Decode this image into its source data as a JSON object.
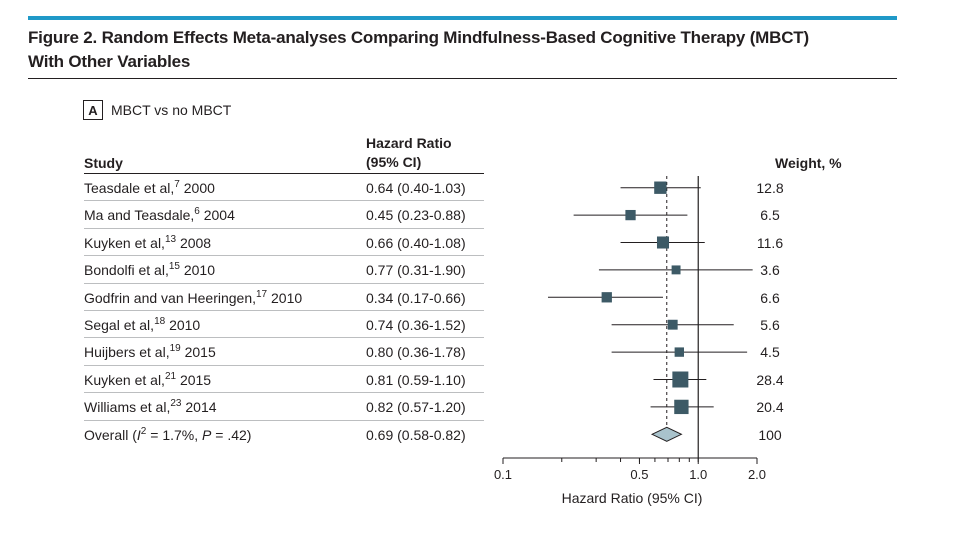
{
  "figure": {
    "title_line1": "Figure 2. Random Effects Meta-analyses Comparing Mindfulness-Based Cognitive Therapy (MBCT)",
    "title_line2": "With Other Variables",
    "panel_letter": "A",
    "panel_label": "MBCT vs no MBCT",
    "header_study": "Study",
    "header_hr_line1": "Hazard Ratio",
    "header_hr_line2": "(95% CI)",
    "header_weight": "Weight, %",
    "rows": [
      {
        "study_pre": "Teasdale et al,",
        "ref": "7",
        "study_post": " 2000",
        "hr_text": "0.64 (0.40-1.03)",
        "weight": "12.8"
      },
      {
        "study_pre": "Ma and Teasdale,",
        "ref": "6",
        "study_post": " 2004",
        "hr_text": "0.45 (0.23-0.88)",
        "weight": "6.5"
      },
      {
        "study_pre": "Kuyken et al,",
        "ref": "13",
        "study_post": " 2008",
        "hr_text": "0.66 (0.40-1.08)",
        "weight": "11.6"
      },
      {
        "study_pre": "Bondolfi et al,",
        "ref": "15",
        "study_post": " 2010",
        "hr_text": "0.77 (0.31-1.90)",
        "weight": "3.6"
      },
      {
        "study_pre": "Godfrin and van Heeringen,",
        "ref": "17",
        "study_post": " 2010",
        "hr_text": "0.34 (0.17-0.66)",
        "weight": "6.6"
      },
      {
        "study_pre": "Segal et al,",
        "ref": "18",
        "study_post": " 2010",
        "hr_text": "0.74 (0.36-1.52)",
        "weight": "5.6"
      },
      {
        "study_pre": "Huijbers et al,",
        "ref": "19",
        "study_post": " 2015",
        "hr_text": "0.80 (0.36-1.78)",
        "weight": "4.5"
      },
      {
        "study_pre": "Kuyken et al,",
        "ref": "21",
        "study_post": " 2015",
        "hr_text": "0.81 (0.59-1.10)",
        "weight": "28.4"
      },
      {
        "study_pre": "Williams et al,",
        "ref": "23",
        "study_post": " 2014",
        "hr_text": "0.82 (0.57-1.20)",
        "weight": "20.4"
      }
    ],
    "overall": {
      "pre": "Overall (",
      "i": "I",
      "sq": "2",
      "mid": " = 1.7%, ",
      "p": "P",
      "post": " = .42)",
      "hr_text": "0.69 (0.58-0.82)",
      "weight": "100"
    }
  },
  "chart_data": {
    "type": "forest",
    "xscale": "log",
    "xlim": [
      0.1,
      2.0
    ],
    "xticks": [
      0.1,
      0.5,
      1.0,
      2.0
    ],
    "xtick_labels": [
      "0.1",
      "0.5",
      "1.0",
      "2.0"
    ],
    "xlabel": "Hazard Ratio (95% CI)",
    "null_line": 1.0,
    "pooled_line": 0.69,
    "colors": {
      "marker": "#3d5a66",
      "diamond": "#a9c3cc",
      "line": "#231f20"
    },
    "studies": [
      {
        "hr": 0.64,
        "lo": 0.4,
        "hi": 1.03,
        "weight": 12.8
      },
      {
        "hr": 0.45,
        "lo": 0.23,
        "hi": 0.88,
        "weight": 6.5
      },
      {
        "hr": 0.66,
        "lo": 0.4,
        "hi": 1.08,
        "weight": 11.6
      },
      {
        "hr": 0.77,
        "lo": 0.31,
        "hi": 1.9,
        "weight": 3.6
      },
      {
        "hr": 0.34,
        "lo": 0.17,
        "hi": 0.66,
        "weight": 6.6
      },
      {
        "hr": 0.74,
        "lo": 0.36,
        "hi": 1.52,
        "weight": 5.6
      },
      {
        "hr": 0.8,
        "lo": 0.36,
        "hi": 1.78,
        "weight": 4.5
      },
      {
        "hr": 0.81,
        "lo": 0.59,
        "hi": 1.1,
        "weight": 28.4
      },
      {
        "hr": 0.82,
        "lo": 0.57,
        "hi": 1.2,
        "weight": 20.4
      }
    ],
    "overall": {
      "hr": 0.69,
      "lo": 0.58,
      "hi": 0.82,
      "weight": 100
    }
  }
}
